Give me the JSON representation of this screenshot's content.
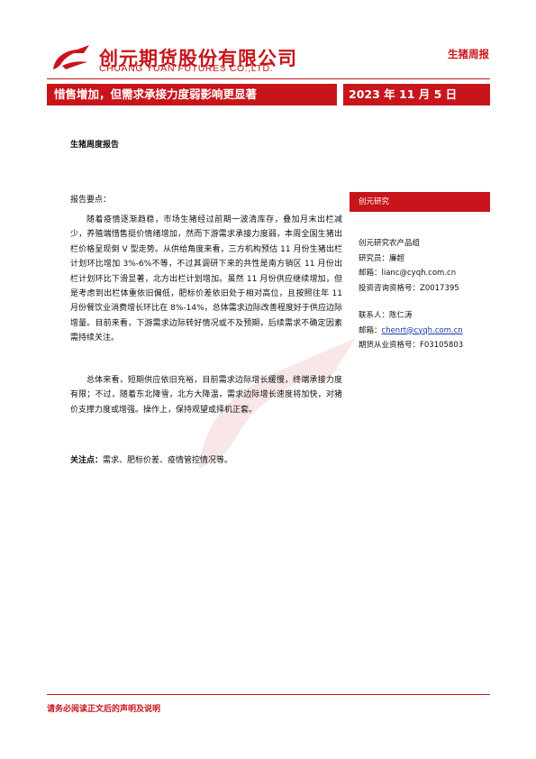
{
  "header": {
    "company_cn": "创元期货股份有限公司",
    "company_en": "CHUANG YUAN FUTURES CO.,LTD.",
    "report_type": "生猪周报",
    "title": "惜售增加，但需求承接力度弱影响更显著",
    "date": "2023 年 11 月 5 日"
  },
  "body": {
    "subtitle": "生猪周度报告",
    "key_points_label": "报告要点：",
    "paragraph1": "随着疫情逐渐趋稳，市场生猪经过前期一波清库存，叠加月末出栏减少，养殖端惜售挺价情绪增加，然而下游需求承接力度弱，本周全国生猪出栏价格呈现倒 V 型走势。从供给角度来看，三方机构预估 11 月份生猪出栏计划环比增加 3%-6%不等，不过其调研下来的共性是南方销区 11 月份出栏计划环比下滑显著，北方出栏计划增加。虽然 11 月份供应继续增加，但是考虑到出栏体重依旧偏低，肥标价差依旧处于相对高位，且按照往年 11 月份餐饮业消费增长环比在 8%-14%，总体需求边际改善程度好于供应边际增量。目前来看，下游需求边际转好情况或不及预期，后续需求不确定因素需持续关注。",
    "paragraph2": "总体来看，短期供应依旧充裕，目前需求边际增长缓慢，终端承接力度有限；不过，随着东北降雪，北方大降温，需求边际增长速度将加快，对猪价支撑力度或增强。操作上，保持观望或择机正套。",
    "focus_label": "关注点：",
    "focus_text": "需求、肥标价差、疫情管控情况等。"
  },
  "sidebar": {
    "heading": "创元研究",
    "group": "创元研究农产品组",
    "researcher": "研究员：廉超",
    "email1": "邮箱：lianc@cyqh.com.cn",
    "cert1": "投资咨询资格号：Z0017395",
    "contact": "联系人：陈仁涛",
    "email2_label": "邮箱：",
    "email2": "chenrt@cyqh.com.cn",
    "cert2": "期货从业资格号：F03105803"
  },
  "footer": {
    "disclaimer": "请务必阅读正文后的声明及说明"
  },
  "colors": {
    "brand_red": "#c8151b"
  }
}
